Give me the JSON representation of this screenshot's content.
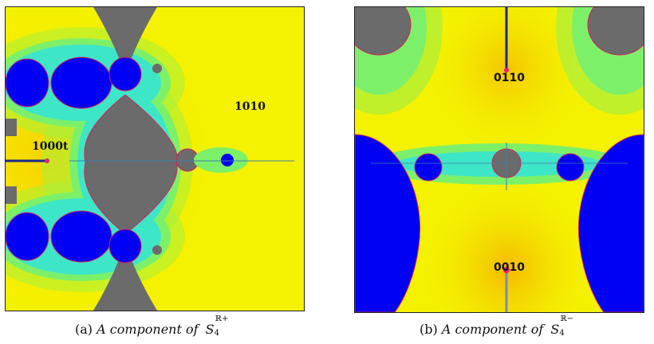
{
  "figure": {
    "panel_a": {
      "labels": {
        "region_1010": "1010",
        "region_1000t": "1000t"
      },
      "caption": {
        "tag": "(a)",
        "text": "A component of",
        "symbol": "S",
        "superscript": "ℝ+",
        "subscript": "4"
      }
    },
    "panel_b": {
      "labels": {
        "region_0110": "0110",
        "region_0010": "0010"
      },
      "caption": {
        "tag": "(b)",
        "text": "A component of",
        "symbol": "S",
        "superscript": "ℝ−",
        "subscript": "4"
      }
    }
  },
  "colors": {
    "background": "#f4f200",
    "blue_component": "#0000f2",
    "gray_component": "#6b6b6b",
    "green_band": "#7df06a",
    "cyan_band": "#3ee6c8",
    "orange_center": "#f5c400",
    "marker_line": "#1a2a8c"
  }
}
